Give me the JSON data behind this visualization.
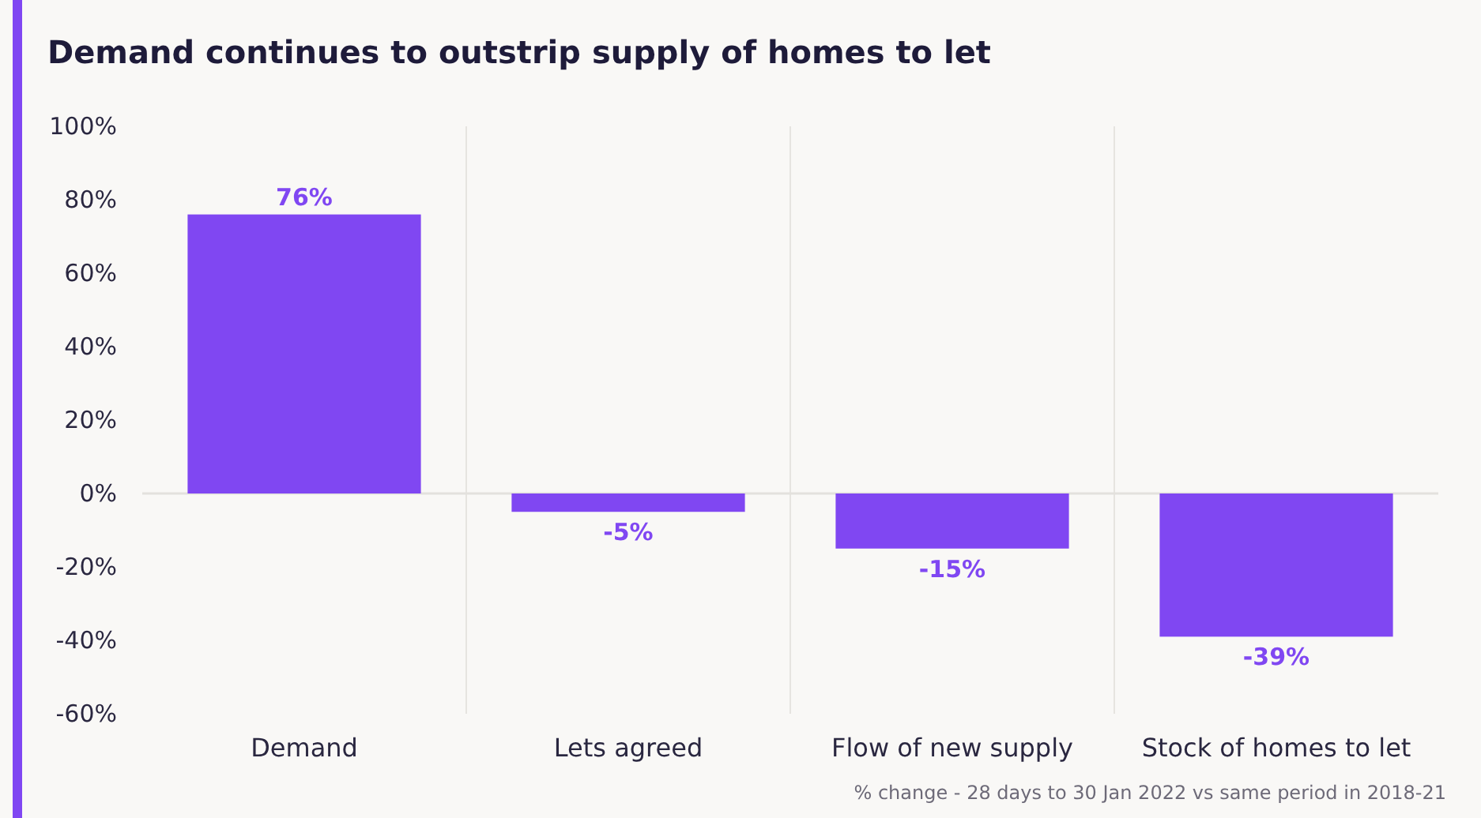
{
  "chart_data": {
    "type": "bar",
    "title": "Demand continues to outstrip supply of homes to let",
    "categories": [
      "Demand",
      "Lets agreed",
      "Flow of new supply",
      "Stock of homes to let"
    ],
    "values": [
      76,
      -5,
      -15,
      -39
    ],
    "value_labels": [
      "76%",
      "-5%",
      "-15%",
      "-39%"
    ],
    "color": "#8047f2",
    "ylim": [
      -60,
      100
    ],
    "yticks": [
      {
        "value": -60,
        "label": "-60%"
      },
      {
        "value": -40,
        "label": "-40%"
      },
      {
        "value": -20,
        "label": "-20%"
      },
      {
        "value": 0,
        "label": "0%"
      },
      {
        "value": 20,
        "label": "20%"
      },
      {
        "value": 40,
        "label": "40%"
      },
      {
        "value": 60,
        "label": "60%"
      },
      {
        "value": 80,
        "label": "80%"
      },
      {
        "value": 100,
        "label": "100%"
      }
    ],
    "grid": "x",
    "annotations": [
      "% change - 28 days to 30 Jan 2022 vs same period in 2018-21"
    ]
  }
}
